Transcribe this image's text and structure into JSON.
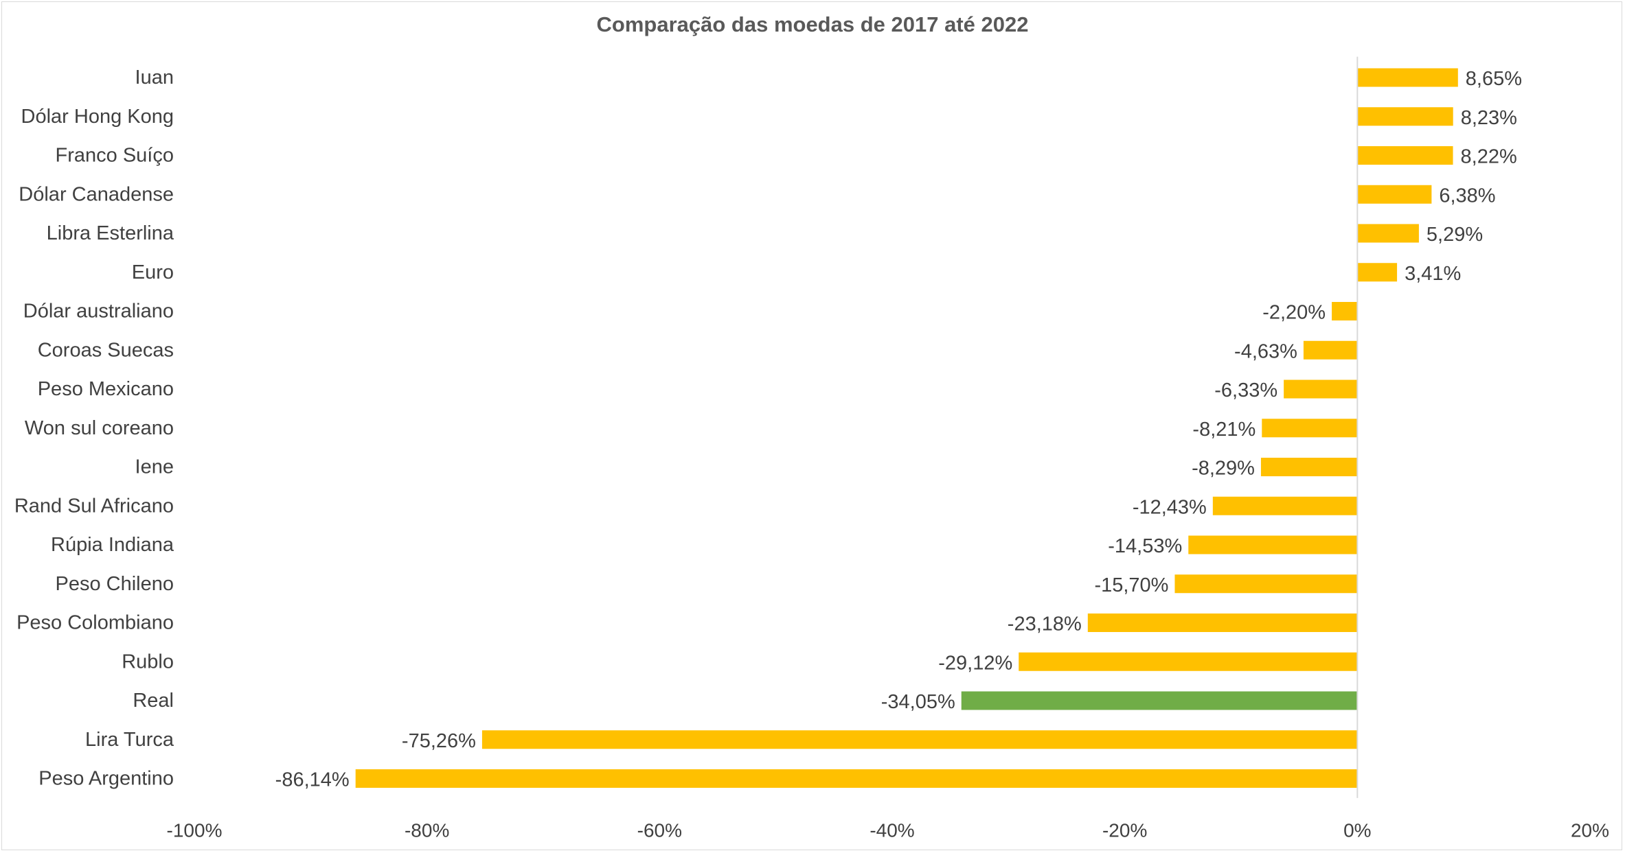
{
  "chart_data": {
    "type": "bar",
    "orientation": "horizontal",
    "title": "Comparação das moedas de 2017 até 2022",
    "xlabel": "",
    "ylabel": "",
    "xlim": [
      -100,
      20
    ],
    "x_ticks": [
      "-100%",
      "-80%",
      "-60%",
      "-40%",
      "-20%",
      "0%",
      "20%"
    ],
    "x_tick_values": [
      -100,
      -80,
      -60,
      -40,
      -20,
      0,
      20
    ],
    "grid": false,
    "legend": "none",
    "bar_color": "#FFC000",
    "highlight_color": "#70AD47",
    "categories": [
      "Iuan",
      "Dólar Hong Kong",
      "Franco Suíço",
      "Dólar Canadense",
      "Libra Esterlina",
      "Euro",
      "Dólar australiano",
      "Coroas Suecas",
      "Peso Mexicano",
      "Won sul coreano",
      "Iene",
      "Rand Sul Africano",
      "Rúpia Indiana",
      "Peso Chileno",
      "Peso Colombiano",
      "Rublo",
      "Real",
      "Lira Turca",
      "Peso Argentino"
    ],
    "values": [
      8.65,
      8.23,
      8.22,
      6.38,
      5.29,
      3.41,
      -2.2,
      -4.63,
      -6.33,
      -8.21,
      -8.29,
      -12.43,
      -14.53,
      -15.7,
      -23.18,
      -29.12,
      -34.05,
      -75.26,
      -86.14
    ],
    "data_labels": [
      "8,65%",
      "8,23%",
      "8,22%",
      "6,38%",
      "5,29%",
      "3,41%",
      "-2,20%",
      "-4,63%",
      "-6,33%",
      "-8,21%",
      "-8,29%",
      "-12,43%",
      "-14,53%",
      "-15,70%",
      "-23,18%",
      "-29,12%",
      "-34,05%",
      "-75,26%",
      "-86,14%"
    ],
    "highlighted": [
      "Real"
    ]
  }
}
